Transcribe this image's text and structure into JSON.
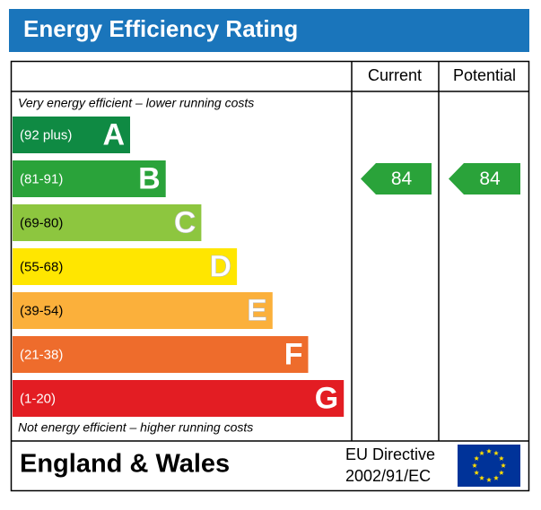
{
  "header": {
    "title": "Energy Efficiency Rating"
  },
  "columns": [
    "Current",
    "Potential"
  ],
  "top_note": "Very energy efficient – lower running costs",
  "bands": [
    {
      "range": "(92 plus)",
      "letter": "A",
      "color": "#0f8a43"
    },
    {
      "range": "(81-91)",
      "letter": "B",
      "color": "#2aa33a"
    },
    {
      "range": "(69-80)",
      "letter": "C",
      "color": "#8dc63f"
    },
    {
      "range": "(55-68)",
      "letter": "D",
      "color": "#ffe600"
    },
    {
      "range": "(39-54)",
      "letter": "E",
      "color": "#fbb03b"
    },
    {
      "range": "(21-38)",
      "letter": "F",
      "color": "#ee6c2c"
    },
    {
      "range": "(1-20)",
      "letter": "G",
      "color": "#e31d23"
    }
  ],
  "ratings": {
    "current": 84,
    "potential": 84
  },
  "bottom_note": "Not energy efficient – higher running costs",
  "footer": {
    "region": "England & Wales",
    "directive": [
      "EU Directive",
      "2002/91/EC"
    ]
  }
}
